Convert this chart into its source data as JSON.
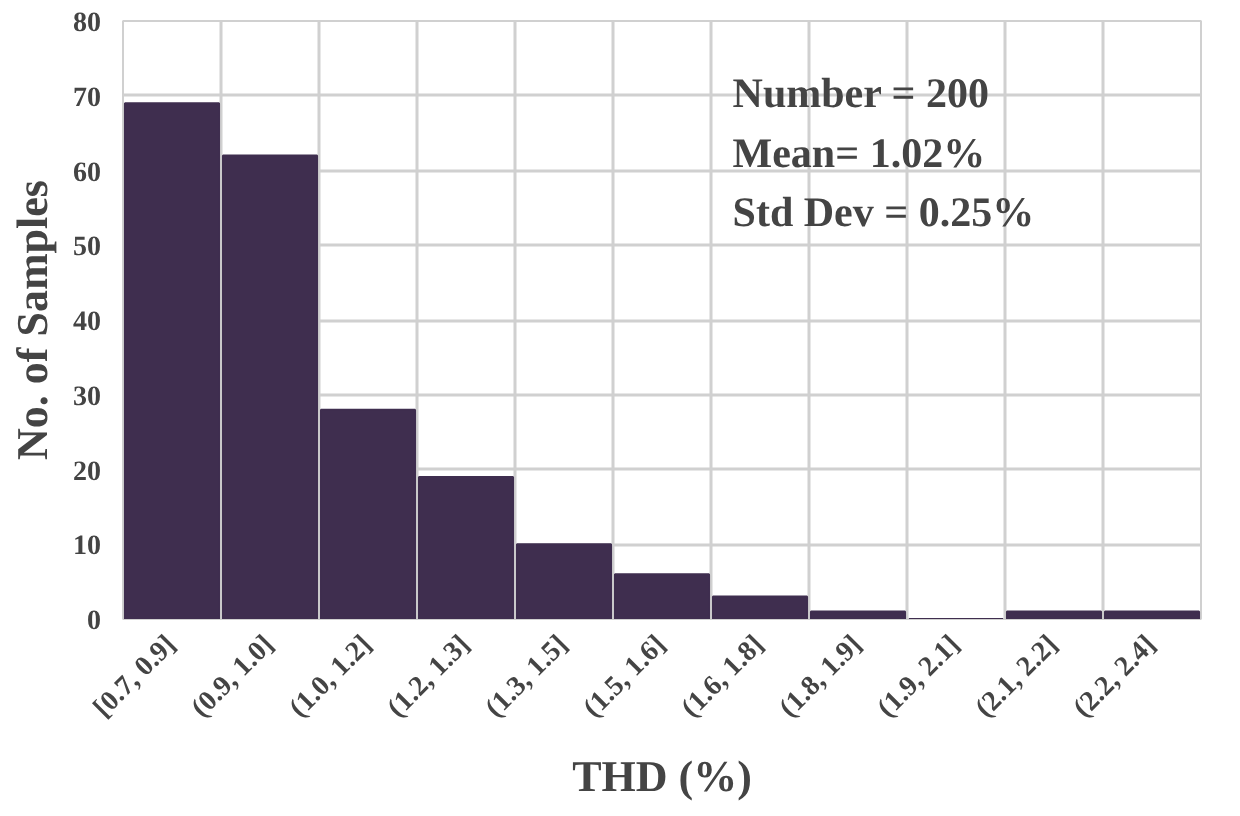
{
  "chart_data": {
    "type": "bar",
    "xlabel": "THD (%)",
    "ylabel": "No. of Samples",
    "categories": [
      "[0.7, 0.9]",
      "(0.9, 1.0]",
      "(1.0, 1.2]",
      "(1.2, 1.3]",
      "(1.3, 1.5]",
      "(1.5, 1.6]",
      "(1.6, 1.8]",
      "(1.8, 1.9]",
      "(1.9, 2.1]",
      "(2.1, 2.2]",
      "(2.2, 2.4]"
    ],
    "values": [
      69,
      62,
      28,
      19,
      10,
      6,
      3,
      1,
      0,
      1,
      1
    ],
    "color": "#3f2e4f",
    "ylim": [
      0,
      80
    ],
    "yticks": [
      0,
      10,
      20,
      30,
      40,
      50,
      60,
      70,
      80
    ],
    "grid": true,
    "annotations": [
      "Number = 200",
      "Mean= 1.02%",
      "Std Dev = 0.25%"
    ]
  }
}
